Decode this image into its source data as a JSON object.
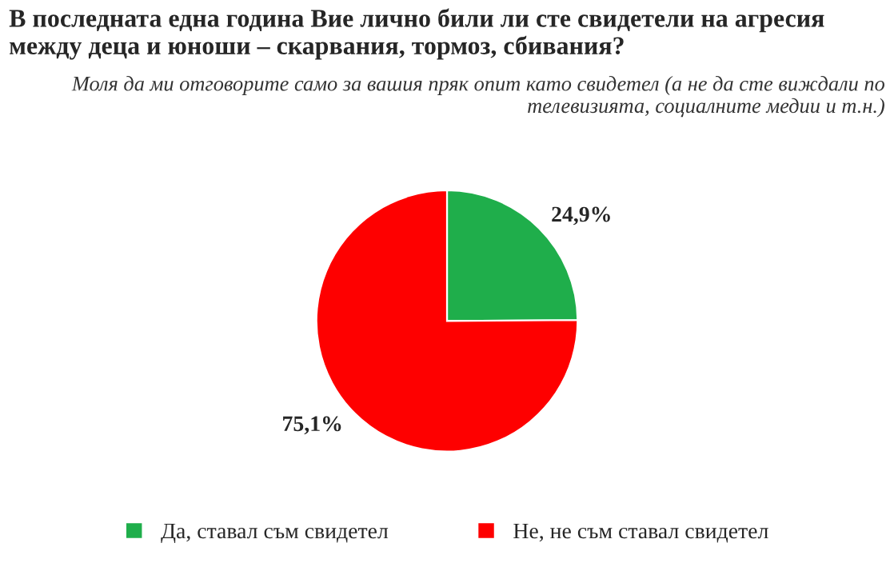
{
  "chart_data": {
    "type": "pie",
    "title": "В последната една година Вие лично били ли сте свидетели на агресия между деца и юноши – скарвания, тормоз, сбивания?",
    "subtitle": "Моля да ми отговорите само за вашия пряк опит като свидетел (а не да сте виждали по телевизията, социалните медии и т.н.)",
    "categories": [
      "Да, ставал съм свидетел",
      "Не, не съм ставал свидетел"
    ],
    "values": [
      24.9,
      75.1
    ],
    "value_labels": [
      "24,9%",
      "75,1%"
    ],
    "colors": [
      "#1fae4b",
      "#fe0000"
    ],
    "legend": "bottom"
  }
}
